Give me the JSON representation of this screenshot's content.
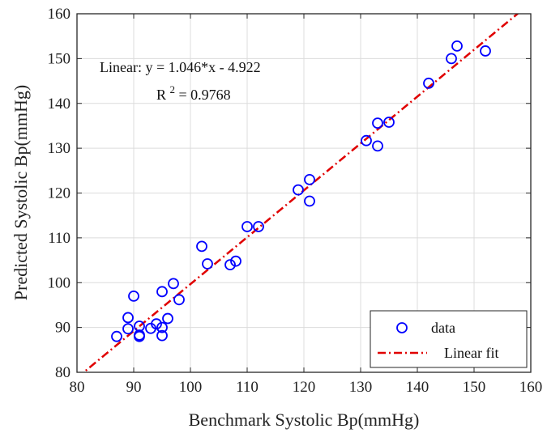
{
  "chart_data": {
    "type": "scatter",
    "xlabel": "Benchmark Systolic Bp(mmHg)",
    "ylabel": "Predicted Systolic Bp(mmHg)",
    "xlim": [
      80,
      160
    ],
    "ylim": [
      80,
      160
    ],
    "xticks": [
      "80",
      "90",
      "100",
      "110",
      "120",
      "130",
      "140",
      "150",
      "160"
    ],
    "yticks": [
      "80",
      "90",
      "100",
      "110",
      "120",
      "130",
      "140",
      "150",
      "160"
    ],
    "grid": true,
    "legend_position": "bottom-right",
    "annotation": {
      "equation": "Linear:  y = 1.046*x - 4.922",
      "r2_prefix": "R",
      "r2_sup": "2",
      "r2_value": " = 0.9768"
    },
    "series": [
      {
        "name": "data",
        "kind": "scatter",
        "marker": "open-circle",
        "color": "#0000ff",
        "points": [
          [
            87,
            88.0
          ],
          [
            89,
            89.7
          ],
          [
            89,
            92.2
          ],
          [
            90,
            97.0
          ],
          [
            91,
            88.0
          ],
          [
            91,
            88.3
          ],
          [
            91,
            90.3
          ],
          [
            93,
            89.8
          ],
          [
            94,
            90.8
          ],
          [
            95,
            90.0
          ],
          [
            95,
            88.2
          ],
          [
            95,
            98.0
          ],
          [
            96,
            92.0
          ],
          [
            97,
            99.8
          ],
          [
            98,
            96.2
          ],
          [
            102,
            108.1
          ],
          [
            103,
            104.2
          ],
          [
            107,
            104.0
          ],
          [
            108,
            104.8
          ],
          [
            110,
            112.5
          ],
          [
            112,
            112.5
          ],
          [
            119,
            120.7
          ],
          [
            121,
            123.0
          ],
          [
            121,
            118.2
          ],
          [
            131,
            131.7
          ],
          [
            133,
            135.6
          ],
          [
            133,
            130.5
          ],
          [
            135,
            135.8
          ],
          [
            142,
            144.5
          ],
          [
            146,
            150.0
          ],
          [
            147,
            152.8
          ],
          [
            152,
            151.7
          ]
        ]
      },
      {
        "name": "Linear fit",
        "kind": "line",
        "style": "dash-dot",
        "color": "#e00000",
        "slope": 1.046,
        "intercept": -4.922
      }
    ]
  }
}
